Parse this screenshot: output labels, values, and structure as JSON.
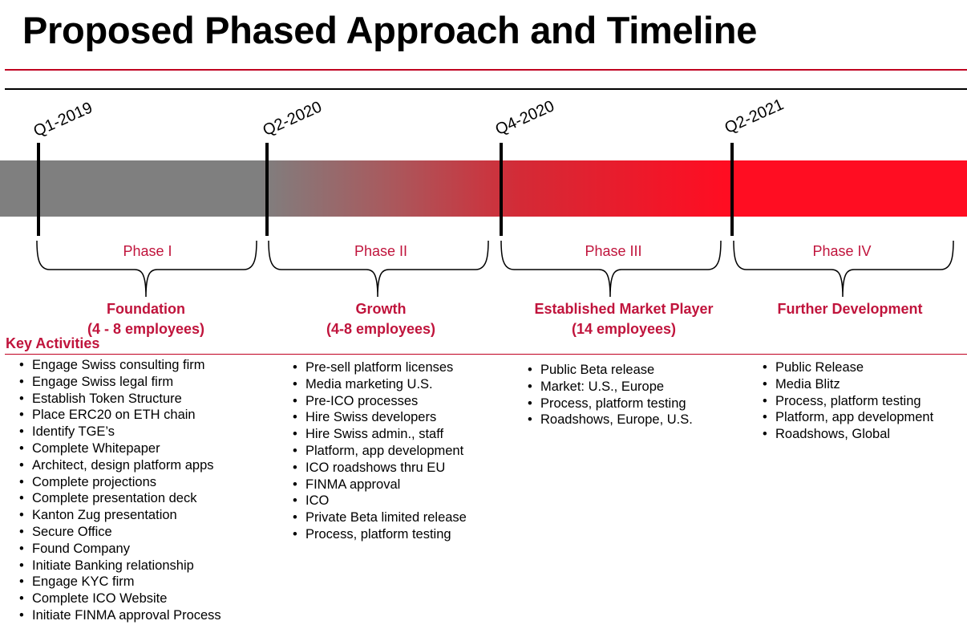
{
  "title": "Proposed Phased Approach and Timeline",
  "colors": {
    "accent_red": "#c0143c",
    "rule_red": "#c00020",
    "band_gray": "#7f7f7f",
    "band_red": "#ff0d22"
  },
  "timeline": {
    "dates": [
      "Q1-2019",
      "Q2-2020",
      "Q4-2020",
      "Q2-2021"
    ]
  },
  "phases": [
    {
      "label": "Phase I",
      "subtitle": [
        "Foundation",
        "(4 - 8 employees)"
      ],
      "activities": [
        "Engage Swiss consulting firm",
        "Engage Swiss legal firm",
        "Establish Token Structure",
        "Place ERC20 on ETH chain",
        "Identify TGE’s",
        "Complete Whitepaper",
        "Architect, design platform apps",
        "Complete projections",
        "Complete presentation deck",
        "Kanton Zug presentation",
        "Secure Office",
        "Found Company",
        "Initiate Banking relationship",
        "Engage KYC firm",
        "Complete ICO Website",
        "Initiate FINMA approval Process"
      ]
    },
    {
      "label": "Phase II",
      "subtitle": [
        "Growth",
        "(4-8 employees)"
      ],
      "activities": [
        "Pre-sell platform licenses",
        "Media marketing U.S.",
        "Pre-ICO processes",
        "Hire Swiss developers",
        "Hire Swiss admin., staff",
        "Platform, app development",
        "ICO roadshows thru EU",
        "FINMA approval",
        "ICO",
        "Private Beta limited release",
        "Process, platform testing"
      ]
    },
    {
      "label": "Phase III",
      "subtitle": [
        "Established Market Player",
        "(14 employees)"
      ],
      "activities": [
        "Public Beta release",
        "Market:  U.S., Europe",
        "Process, platform testing",
        "Roadshows, Europe, U.S."
      ]
    },
    {
      "label": "Phase IV",
      "subtitle": [
        "Further Development"
      ],
      "activities": [
        "Public Release",
        "Media Blitz",
        "Process, platform testing",
        "Platform, app development",
        "Roadshows, Global"
      ]
    }
  ],
  "key_activities_heading": "Key Activities"
}
